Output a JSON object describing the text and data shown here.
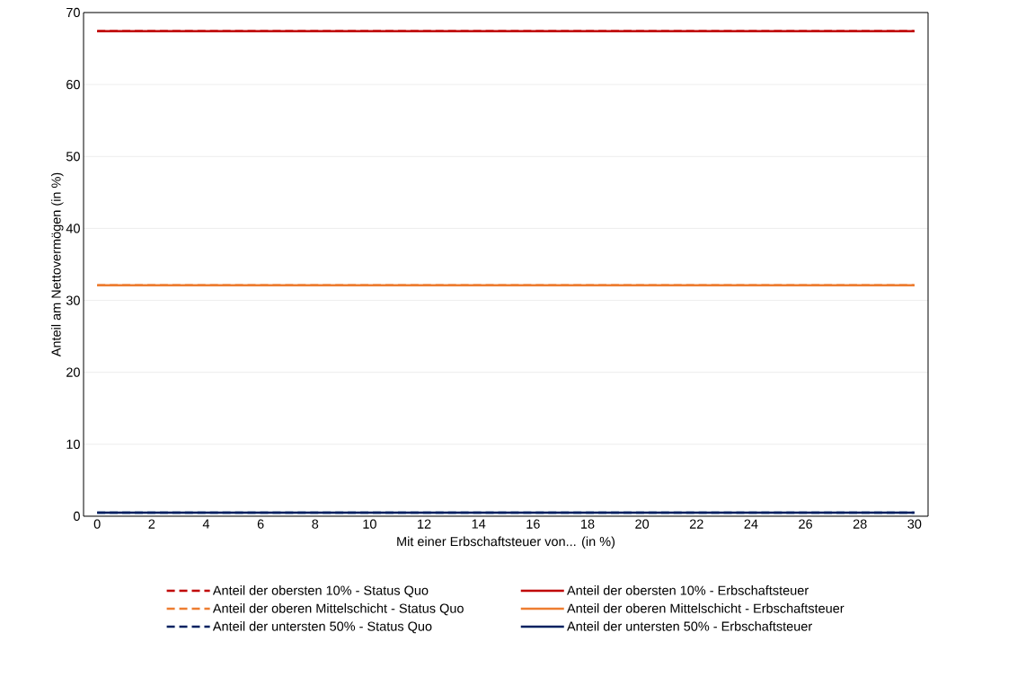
{
  "chart_data": {
    "type": "line",
    "xlabel": "Mit einer Erbschaftsteuer von... (in %)",
    "ylabel": "Anteil am Nettovermögen (in %)",
    "x": [
      0,
      30
    ],
    "xlim": [
      -0.5,
      30.5
    ],
    "xticks": [
      0,
      2,
      4,
      6,
      8,
      10,
      12,
      14,
      16,
      18,
      20,
      22,
      24,
      26,
      28,
      30
    ],
    "ylim": [
      0,
      70
    ],
    "yticks": [
      0,
      10,
      20,
      30,
      40,
      50,
      60,
      70
    ],
    "grid": "y",
    "legend": "bottom",
    "series": [
      {
        "name": "Anteil der obersten 10% - Status Quo",
        "color": "#c00000",
        "line_style": "dashed",
        "values": [
          67.4,
          67.4
        ]
      },
      {
        "name": "Anteil der obersten 10% - Erbschaftsteuer",
        "color": "#c00000",
        "line_style": "solid",
        "values": [
          67.4,
          67.4
        ]
      },
      {
        "name": "Anteil der oberen Mittelschicht - Status Quo",
        "color": "#ed7d31",
        "line_style": "dashed",
        "values": [
          32.1,
          32.1
        ]
      },
      {
        "name": "Anteil der oberen Mittelschicht - Erbschaftsteuer",
        "color": "#ed7d31",
        "line_style": "solid",
        "values": [
          32.1,
          32.1
        ]
      },
      {
        "name": "Anteil der untersten 50% - Status Quo",
        "color": "#002060",
        "line_style": "dashed",
        "values": [
          0.5,
          0.5
        ]
      },
      {
        "name": "Anteil der untersten 50% - Erbschaftsteuer",
        "color": "#002060",
        "line_style": "solid",
        "values": [
          0.5,
          0.5
        ]
      }
    ]
  }
}
